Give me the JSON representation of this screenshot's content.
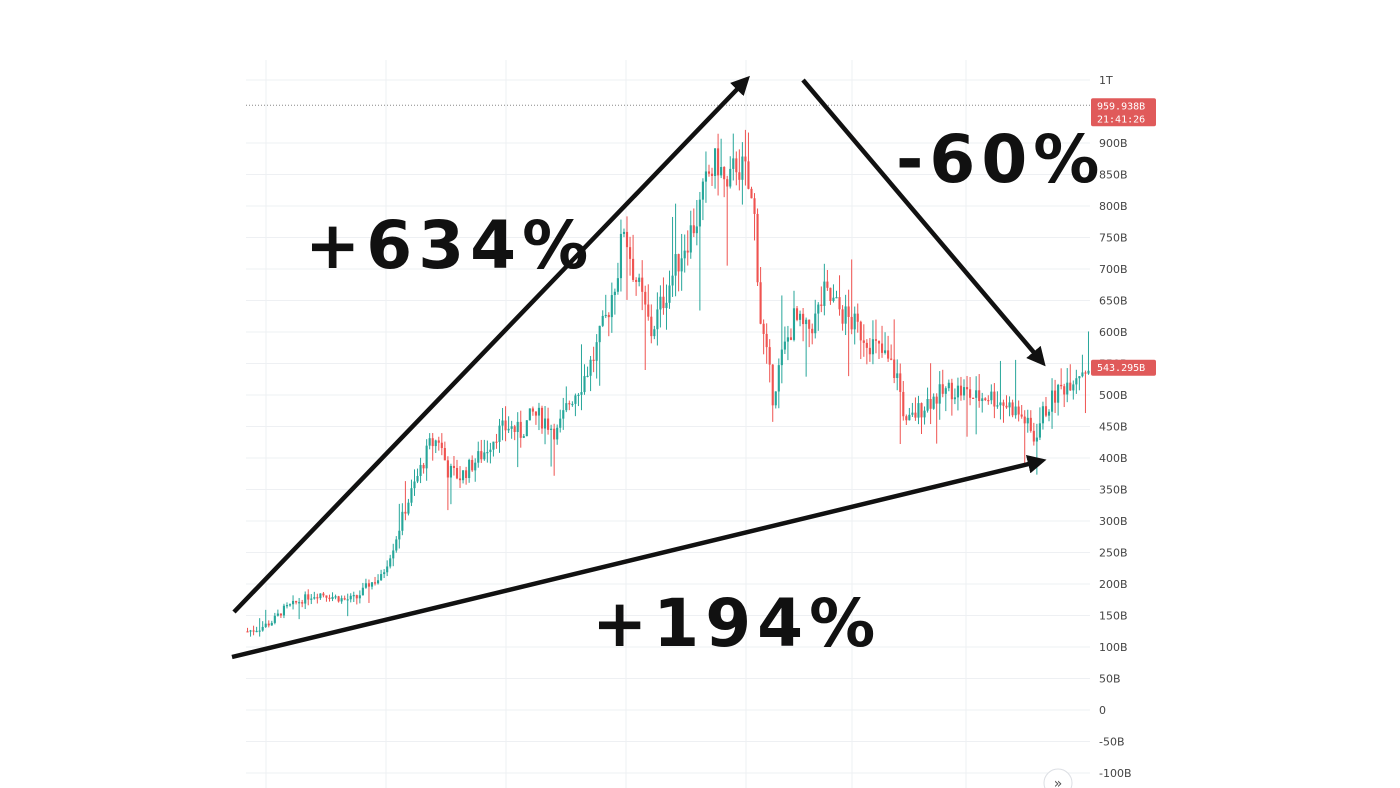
{
  "chart_data": {
    "type": "candlestick",
    "colors": {
      "up": "#26a69a",
      "down": "#ef5350",
      "tag": "#e05a5a",
      "annotation": "#111111",
      "grid": "#eef0f3"
    },
    "ylim": [
      -100,
      1000
    ],
    "y_ticks": [
      {
        "v": 1000,
        "label": "1T"
      },
      {
        "v": 900,
        "label": "900B"
      },
      {
        "v": 850,
        "label": "850B"
      },
      {
        "v": 800,
        "label": "800B"
      },
      {
        "v": 750,
        "label": "750B"
      },
      {
        "v": 700,
        "label": "700B"
      },
      {
        "v": 650,
        "label": "650B"
      },
      {
        "v": 600,
        "label": "600B"
      },
      {
        "v": 550,
        "label": "550B"
      },
      {
        "v": 500,
        "label": "500B"
      },
      {
        "v": 450,
        "label": "450B"
      },
      {
        "v": 400,
        "label": "400B"
      },
      {
        "v": 350,
        "label": "350B"
      },
      {
        "v": 300,
        "label": "300B"
      },
      {
        "v": 250,
        "label": "250B"
      },
      {
        "v": 200,
        "label": "200B"
      },
      {
        "v": 150,
        "label": "150B"
      },
      {
        "v": 100,
        "label": "100B"
      },
      {
        "v": 50,
        "label": "50B"
      },
      {
        "v": 0,
        "label": "0"
      },
      {
        "v": -50,
        "label": "-50B"
      },
      {
        "v": -100,
        "label": "-100B"
      }
    ],
    "price_tags": [
      {
        "v": 960,
        "label": "959.938B",
        "sublabel": "21:41:26"
      },
      {
        "v": 543.3,
        "label": "543.295B",
        "sublabel": ""
      }
    ],
    "price_path": [
      [
        0,
        125
      ],
      [
        4,
        130
      ],
      [
        8,
        140
      ],
      [
        12,
        160
      ],
      [
        16,
        170
      ],
      [
        20,
        180
      ],
      [
        24,
        185
      ],
      [
        28,
        180
      ],
      [
        32,
        175
      ],
      [
        36,
        178
      ],
      [
        40,
        200
      ],
      [
        44,
        210
      ],
      [
        48,
        260
      ],
      [
        52,
        320
      ],
      [
        56,
        370
      ],
      [
        60,
        420
      ],
      [
        63,
        430
      ],
      [
        66,
        380
      ],
      [
        70,
        370
      ],
      [
        74,
        390
      ],
      [
        78,
        410
      ],
      [
        82,
        440
      ],
      [
        86,
        450
      ],
      [
        90,
        440
      ],
      [
        94,
        470
      ],
      [
        98,
        460
      ],
      [
        102,
        440
      ],
      [
        106,
        490
      ],
      [
        110,
        520
      ],
      [
        114,
        560
      ],
      [
        118,
        620
      ],
      [
        122,
        700
      ],
      [
        124,
        770
      ],
      [
        127,
        700
      ],
      [
        130,
        650
      ],
      [
        133,
        600
      ],
      [
        136,
        640
      ],
      [
        140,
        690
      ],
      [
        144,
        740
      ],
      [
        148,
        780
      ],
      [
        152,
        850
      ],
      [
        155,
        870
      ],
      [
        158,
        820
      ],
      [
        161,
        870
      ],
      [
        164,
        850
      ],
      [
        167,
        780
      ],
      [
        169,
        620
      ],
      [
        171,
        560
      ],
      [
        173,
        500
      ],
      [
        176,
        560
      ],
      [
        180,
        620
      ],
      [
        184,
        600
      ],
      [
        187,
        620
      ],
      [
        190,
        660
      ],
      [
        194,
        640
      ],
      [
        198,
        620
      ],
      [
        202,
        600
      ],
      [
        206,
        580
      ],
      [
        210,
        560
      ],
      [
        214,
        530
      ],
      [
        217,
        450
      ],
      [
        220,
        470
      ],
      [
        224,
        490
      ],
      [
        228,
        500
      ],
      [
        232,
        510
      ],
      [
        236,
        505
      ],
      [
        240,
        495
      ],
      [
        244,
        500
      ],
      [
        248,
        490
      ],
      [
        252,
        480
      ],
      [
        256,
        460
      ],
      [
        259,
        430
      ],
      [
        262,
        470
      ],
      [
        266,
        500
      ],
      [
        270,
        520
      ],
      [
        274,
        540
      ],
      [
        277,
        545
      ]
    ],
    "annotations": [
      {
        "label": "+634%"
      },
      {
        "label": "-60%"
      },
      {
        "label": "+194%"
      }
    ],
    "nav_button": "»"
  }
}
